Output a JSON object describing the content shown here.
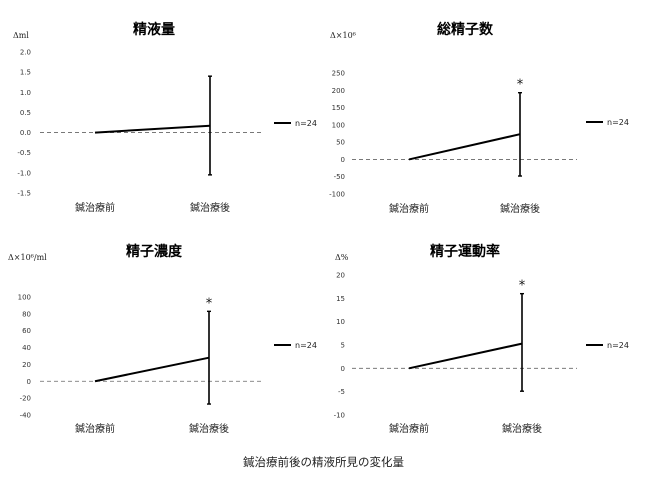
{
  "caption": "鍼治療前後の精液所見の変化量",
  "chart_data": [
    {
      "type": "line",
      "title": "精液量",
      "ylabel": "Δml",
      "categories": [
        "鍼治療前",
        "鍼治療後"
      ],
      "ylim": [
        -1.5,
        2.0
      ],
      "yticks": [
        "2.0",
        "1.5",
        "1.0",
        "0.5",
        "0.0",
        "-0.5",
        "-1.0",
        "-1.5"
      ],
      "series": [
        {
          "name": "n=24",
          "values": [
            0,
            0.17
          ],
          "error_low": [
            null,
            -1.05
          ],
          "error_high": [
            null,
            1.4
          ]
        }
      ],
      "significance": [
        null,
        null
      ],
      "reference_line": 0,
      "legend": "right"
    },
    {
      "type": "line",
      "title": "総精子数",
      "ylabel": "Δ×10⁶",
      "categories": [
        "鍼治療前",
        "鍼治療後"
      ],
      "ylim": [
        -100,
        250
      ],
      "yticks": [
        "250",
        "200",
        "150",
        "100",
        "50",
        "0",
        "-50",
        "-100"
      ],
      "series": [
        {
          "name": "n=24",
          "values": [
            0,
            73
          ],
          "error_low": [
            null,
            -48
          ],
          "error_high": [
            null,
            193
          ]
        }
      ],
      "significance": [
        null,
        "*"
      ],
      "reference_line": 0,
      "legend": "right"
    },
    {
      "type": "line",
      "title": "精子濃度",
      "ylabel": "Δ×10⁶/ml",
      "categories": [
        "鍼治療前",
        "鍼治療後"
      ],
      "ylim": [
        -40,
        100
      ],
      "yticks": [
        "100",
        "80",
        "60",
        "40",
        "20",
        "0",
        "-20",
        "-40"
      ],
      "series": [
        {
          "name": "n=24",
          "values": [
            0,
            28
          ],
          "error_low": [
            null,
            -27
          ],
          "error_high": [
            null,
            83
          ]
        }
      ],
      "significance": [
        null,
        "*"
      ],
      "reference_line": 0,
      "legend": "right"
    },
    {
      "type": "line",
      "title": "精子運動率",
      "ylabel": "Δ%",
      "categories": [
        "鍼治療前",
        "鍼治療後"
      ],
      "ylim": [
        -10,
        20
      ],
      "yticks": [
        "20",
        "15",
        "10",
        "5",
        "0",
        "-5",
        "-10"
      ],
      "series": [
        {
          "name": "n=24",
          "values": [
            0,
            5.3
          ],
          "error_low": [
            null,
            -4.9
          ],
          "error_high": [
            null,
            16
          ]
        }
      ],
      "significance": [
        null,
        "*"
      ],
      "reference_line": 0,
      "legend": "right"
    }
  ]
}
